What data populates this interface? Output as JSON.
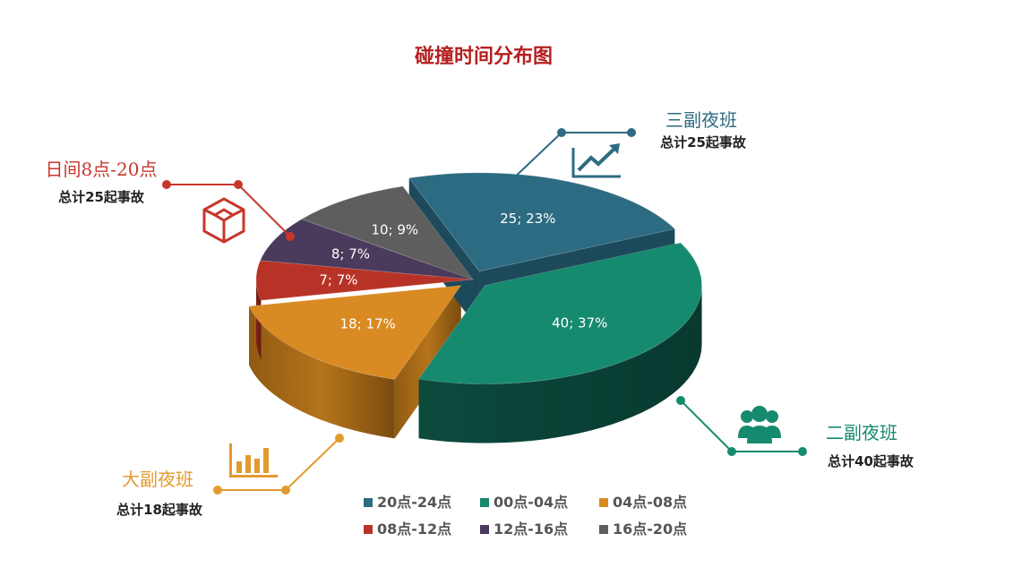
{
  "chart_data": {
    "type": "pie",
    "title": "碰撞时间分布图",
    "slices": [
      {
        "name": "20点-24点",
        "value": 25,
        "percent": "23%",
        "label": "25; 23%",
        "color": "#2d6b82",
        "exploded": true
      },
      {
        "name": "00点-04点",
        "value": 40,
        "percent": "37%",
        "label": "40; 37%",
        "color": "#168a6e",
        "exploded": true
      },
      {
        "name": "04点-08点",
        "value": 18,
        "percent": "17%",
        "label": "18; 17%",
        "color": "#d98a22",
        "exploded": true
      },
      {
        "name": "08点-12点",
        "value": 7,
        "percent": "7%",
        "label": "7; 7%",
        "color": "#b83327",
        "exploded": false
      },
      {
        "name": "12点-16点",
        "value": 8,
        "percent": "7%",
        "label": "8; 7%",
        "color": "#4a3a5c",
        "exploded": false
      },
      {
        "name": "16点-20点",
        "value": 10,
        "percent": "9%",
        "label": "10; 9%",
        "color": "#5e5e5e",
        "exploded": false
      }
    ],
    "legend": {
      "placement": "bottom",
      "columns": 3
    }
  },
  "callouts": {
    "third_shift": {
      "title": "三副夜班",
      "subtitle": "总计25起事故",
      "color": "#2d6b82",
      "icon": "growth-chart-icon"
    },
    "second_shift": {
      "title": "二副夜班",
      "subtitle": "总计40起事故",
      "color": "#168a6e",
      "icon": "people-group-icon"
    },
    "first_shift": {
      "title": "大副夜班",
      "subtitle": "总计18起事故",
      "color": "#e39a2e",
      "icon": "bar-chart-icon"
    },
    "day_shift": {
      "title": "日间8点-20点",
      "subtitle": "总计25起事故",
      "color": "#c8362b",
      "icon": "cube-icon"
    }
  },
  "colors": {
    "title": "#b51f1f"
  }
}
